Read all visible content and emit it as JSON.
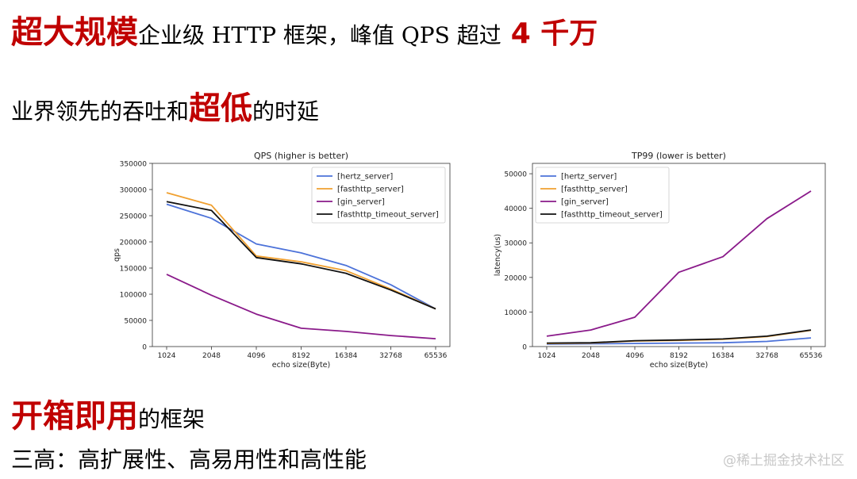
{
  "headline": {
    "highlight": "超大规模",
    "text": "企业级 HTTP 框架，峰值 QPS 超过",
    "number": "4 千万"
  },
  "subheadline": {
    "prefix": "业界领先的吞吐和",
    "highlight": "超低",
    "suffix": "的时延"
  },
  "section2": {
    "highlight": "开箱即用",
    "text": "的框架"
  },
  "features": "三高：高扩展性、高易用性和高性能",
  "watermark": "@稀土掘金技术社区",
  "chart_data": [
    {
      "type": "line",
      "title": "QPS (higher is better)",
      "xlabel": "echo size(Byte)",
      "ylabel": "qps",
      "categories": [
        "1024",
        "2048",
        "4096",
        "8192",
        "16384",
        "32768",
        "65536"
      ],
      "ylim": [
        0,
        350000
      ],
      "yticks": [
        0,
        50000,
        100000,
        150000,
        200000,
        250000,
        300000,
        350000
      ],
      "legend": "top-right",
      "series": [
        {
          "name": "[hertz_server]",
          "color": "#4c72d9",
          "values": [
            272000,
            245000,
            196000,
            179000,
            155000,
            118000,
            72000
          ]
        },
        {
          "name": "[fasthttp_server]",
          "color": "#f0a030",
          "values": [
            294000,
            270000,
            173000,
            162000,
            145000,
            110000,
            72000
          ]
        },
        {
          "name": "[gin_server]",
          "color": "#8a1a8a",
          "values": [
            138000,
            98000,
            62000,
            35000,
            29000,
            21000,
            15000
          ]
        },
        {
          "name": "[fasthttp_timeout_server]",
          "color": "#111111",
          "values": [
            277000,
            260000,
            170000,
            158000,
            140000,
            108000,
            72000
          ]
        }
      ]
    },
    {
      "type": "line",
      "title": "TP99 (lower is better)",
      "xlabel": "echo size(Byte)",
      "ylabel": "latency(us)",
      "categories": [
        "1024",
        "2048",
        "4096",
        "8192",
        "16384",
        "32768",
        "65536"
      ],
      "ylim": [
        0,
        53000
      ],
      "yticks": [
        0,
        10000,
        20000,
        30000,
        40000,
        50000
      ],
      "legend": "top-left",
      "series": [
        {
          "name": "[hertz_server]",
          "color": "#4c72d9",
          "values": [
            700,
            800,
            900,
            1000,
            1100,
            1500,
            2500
          ]
        },
        {
          "name": "[fasthttp_server]",
          "color": "#f0a030",
          "values": [
            900,
            1000,
            1600,
            1800,
            2100,
            2900,
            4700
          ]
        },
        {
          "name": "[gin_server]",
          "color": "#8a1a8a",
          "values": [
            3000,
            4800,
            8500,
            21500,
            26000,
            37000,
            45000
          ]
        },
        {
          "name": "[fasthttp_timeout_server]",
          "color": "#111111",
          "values": [
            1000,
            1100,
            1700,
            1900,
            2200,
            3000,
            4800
          ]
        }
      ]
    }
  ]
}
